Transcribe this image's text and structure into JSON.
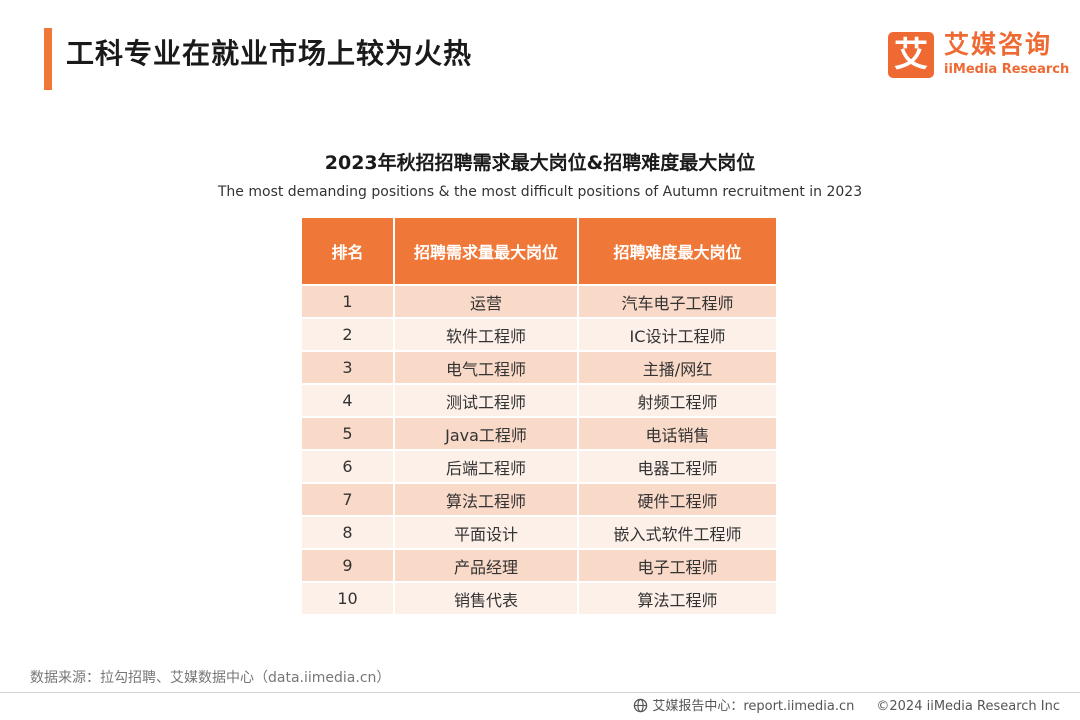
{
  "header": {
    "title": "工科专业在就业市场上较为火热",
    "logo_mark": "艾",
    "logo_cn": "艾媒咨询",
    "logo_en": "iiMedia Research"
  },
  "chart": {
    "title": "2023年秋招招聘需求最大岗位&招聘难度最大岗位",
    "subtitle": "The most demanding positions & the most difficult positions of Autumn recruitment in 2023"
  },
  "table": {
    "headers": [
      "排名",
      "招聘需求量最大岗位",
      "招聘难度最大岗位"
    ],
    "rows": [
      {
        "rank": "1",
        "demand": "运营",
        "difficult": "汽车电子工程师"
      },
      {
        "rank": "2",
        "demand": "软件工程师",
        "difficult": "IC设计工程师"
      },
      {
        "rank": "3",
        "demand": "电气工程师",
        "difficult": "主播/网红"
      },
      {
        "rank": "4",
        "demand": "测试工程师",
        "difficult": "射频工程师"
      },
      {
        "rank": "5",
        "demand": "Java工程师",
        "difficult": "电话销售"
      },
      {
        "rank": "6",
        "demand": "后端工程师",
        "difficult": "电器工程师"
      },
      {
        "rank": "7",
        "demand": "算法工程师",
        "difficult": "硬件工程师"
      },
      {
        "rank": "8",
        "demand": "平面设计",
        "difficult": "嵌入式软件工程师"
      },
      {
        "rank": "9",
        "demand": "产品经理",
        "difficult": "电子工程师"
      },
      {
        "rank": "10",
        "demand": "销售代表",
        "difficult": "算法工程师"
      }
    ]
  },
  "footer": {
    "source": "数据来源：拉勾招聘、艾媒数据中心（data.iimedia.cn）",
    "report_center": "艾媒报告中心：report.iimedia.cn",
    "copyright": "©2024  iiMedia Research  Inc"
  },
  "colors": {
    "accent": "#ef7838",
    "row_odd": "#f9d9c8",
    "row_even": "#fdf0e9"
  }
}
